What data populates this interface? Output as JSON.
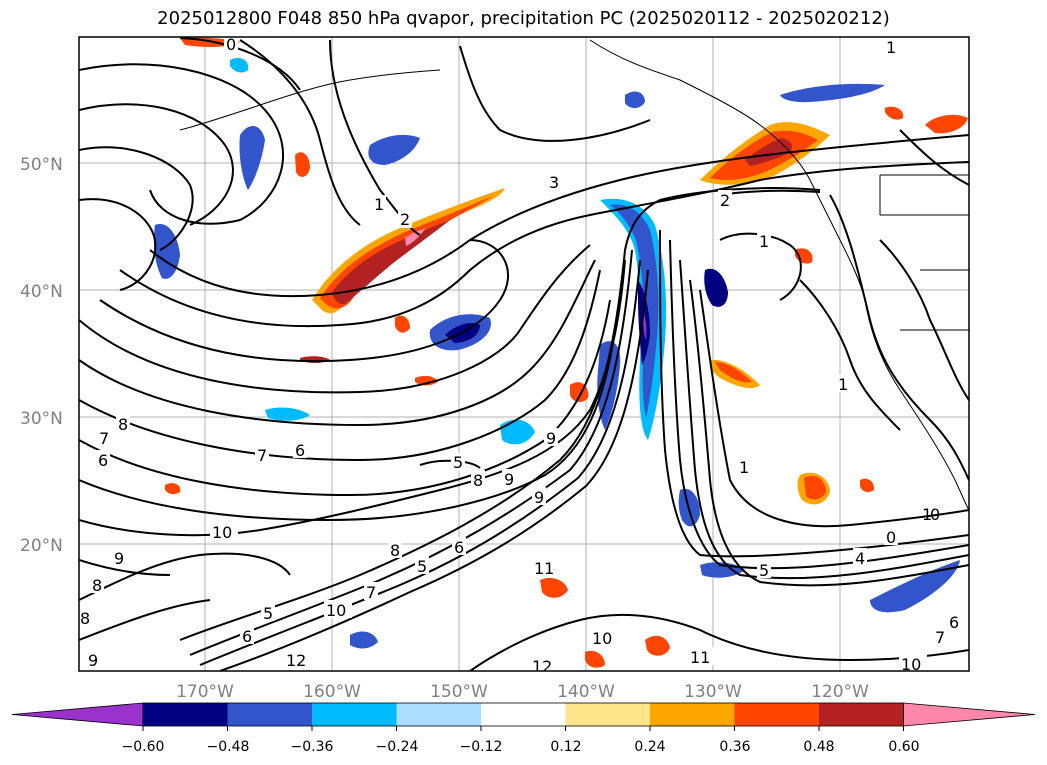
{
  "title": "2025012800 F048 850 hPa qvapor, precipitation PC (2025020112 - 2025020212)",
  "latitude_labels": [
    "50°N",
    "40°N",
    "30°N",
    "20°N"
  ],
  "longitude_labels": [
    "170°W",
    "160°W",
    "150°W",
    "140°W",
    "130°W",
    "120°W"
  ],
  "colorbar": {
    "ticks": [
      "−0.60",
      "−0.48",
      "−0.36",
      "−0.24",
      "−0.12",
      "0.12",
      "0.24",
      "0.36",
      "0.48",
      "0.60"
    ],
    "colors": [
      "#9933cc",
      "#000080",
      "#3355cc",
      "#00bbff",
      "#aaddff",
      "#ffffff",
      "#ffe58a",
      "#ffa500",
      "#ff4500",
      "#b22222",
      "#ff88aa"
    ]
  },
  "contour_labels": [
    "0",
    "1",
    "1",
    "3",
    "2",
    "1",
    "2",
    "1",
    "1",
    "7",
    "6",
    "8",
    "6",
    "7",
    "5",
    "8",
    "9",
    "9",
    "9",
    "1",
    "0",
    "0",
    "4",
    "5",
    "10",
    "9",
    "8",
    "8",
    "5",
    "6",
    "6",
    "5",
    "10",
    "7",
    "8",
    "11",
    "10",
    "11",
    "12",
    "12",
    "9",
    "7",
    "6",
    "10"
  ]
}
